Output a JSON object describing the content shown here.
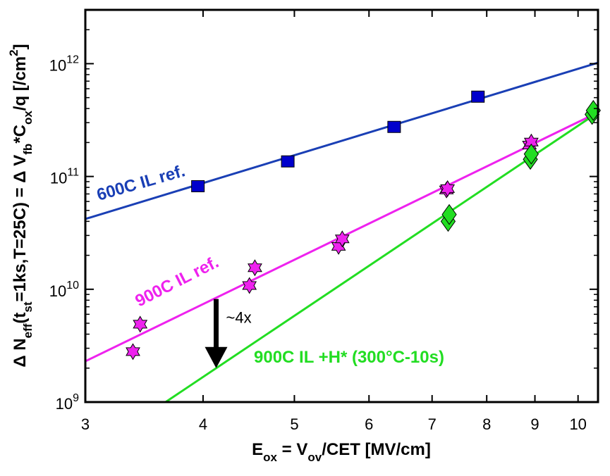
{
  "chart_data": {
    "type": "scatter",
    "x_scale": "log",
    "y_scale": "log",
    "xlim": [
      3,
      10.5
    ],
    "ylim": [
      1000000000.0,
      3000000000000.0
    ],
    "x_ticks": [
      3,
      4,
      5,
      6,
      7,
      8,
      9,
      10
    ],
    "x_tick_labels": [
      "3",
      "4",
      "5",
      "6",
      "7",
      "8",
      "9",
      "10"
    ],
    "y_ticks": [
      1000000000.0,
      10000000000.0,
      100000000000.0,
      1000000000000.0
    ],
    "y_tick_labels": [
      {
        "base": "10",
        "exp": "9"
      },
      {
        "base": "10",
        "exp": "10"
      },
      {
        "base": "10",
        "exp": "11"
      },
      {
        "base": "10",
        "exp": "12"
      }
    ],
    "xlabel": {
      "parts": [
        {
          "t": "E",
          "s": "n"
        },
        {
          "t": "ox",
          "s": "sub"
        },
        {
          "t": " = V",
          "s": "n"
        },
        {
          "t": "ov",
          "s": "sub"
        },
        {
          "t": "/CET [MV/cm]",
          "s": "n"
        }
      ]
    },
    "ylabel": {
      "parts": [
        {
          "t": "Δ N",
          "s": "n"
        },
        {
          "t": "eff",
          "s": "sub"
        },
        {
          "t": "(t",
          "s": "n"
        },
        {
          "t": "st",
          "s": "sub"
        },
        {
          "t": "=1ks,T=25C) = Δ V",
          "s": "n"
        },
        {
          "t": "fb",
          "s": "sub"
        },
        {
          "t": "*C",
          "s": "n"
        },
        {
          "t": "ox",
          "s": "sub"
        },
        {
          "t": "/q [/cm",
          "s": "n"
        },
        {
          "t": "2",
          "s": "sup"
        },
        {
          "t": "]",
          "s": "n"
        }
      ]
    },
    "grid": false,
    "series": [
      {
        "name": "600C IL ref.",
        "color": "#0000cc",
        "line_color": "#1a3fb5",
        "marker": "square",
        "x": [
          3.95,
          4.92,
          6.38,
          7.83
        ],
        "y": [
          82000000000.0,
          136000000000.0,
          275000000000.0,
          510000000000.0
        ],
        "fit": {
          "x": [
            3,
            10.5
          ],
          "y": [
            42000000000.0,
            1020000000000.0
          ]
        },
        "label_rotation": -16
      },
      {
        "name": "900C IL ref.",
        "color": "#ee22ee",
        "line_color": "#ee22ee",
        "marker": "hexagram",
        "x": [
          3.37,
          3.43,
          4.48,
          4.54,
          5.57,
          5.62,
          7.25,
          7.27,
          8.88,
          8.92
        ],
        "y": [
          2800000000.0,
          4900000000.0,
          10800000000.0,
          15500000000.0,
          24000000000.0,
          28000000000.0,
          76000000000.0,
          78000000000.0,
          190000000000.0,
          202000000000.0
        ],
        "fit": {
          "x": [
            3,
            10.5
          ],
          "y": [
            2300000000.0,
            370000000000.0
          ]
        },
        "label_rotation": -27
      },
      {
        "name": "900C IL +H* (300°C-10s)",
        "color": "#22dd22",
        "line_color": "#22dd22",
        "marker": "diamond",
        "x": [
          7.28,
          7.3,
          8.9,
          8.92,
          10.35,
          10.38
        ],
        "y": [
          40000000000.0,
          46000000000.0,
          142000000000.0,
          158000000000.0,
          355000000000.0,
          385000000000.0
        ],
        "fit": {
          "x": [
            3.65,
            10.5
          ],
          "y": [
            1000000000.0,
            370000000000.0
          ]
        },
        "label_rotation": 0
      }
    ],
    "annotations": [
      {
        "text": "~4x",
        "type": "arrow",
        "x": 4.13,
        "y_from": 8200000000.0,
        "y_to": 2000000000.0
      }
    ]
  }
}
